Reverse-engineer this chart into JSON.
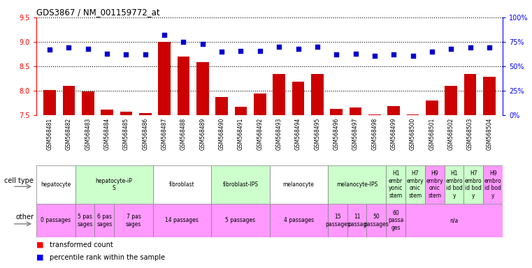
{
  "title": "GDS3867 / NM_001159772_at",
  "samples": [
    "GSM568481",
    "GSM568482",
    "GSM568483",
    "GSM568484",
    "GSM568485",
    "GSM568486",
    "GSM568487",
    "GSM568488",
    "GSM568489",
    "GSM568490",
    "GSM568491",
    "GSM568492",
    "GSM568493",
    "GSM568494",
    "GSM568495",
    "GSM568496",
    "GSM568497",
    "GSM568498",
    "GSM568499",
    "GSM568500",
    "GSM568501",
    "GSM568502",
    "GSM568503",
    "GSM568504"
  ],
  "bar_values": [
    8.01,
    8.1,
    7.98,
    7.62,
    7.57,
    7.55,
    9.0,
    8.7,
    8.59,
    7.87,
    7.67,
    7.94,
    8.35,
    8.18,
    8.35,
    7.63,
    7.65,
    7.52,
    7.68,
    7.52,
    7.8,
    8.1,
    8.35,
    8.28
  ],
  "dot_values": [
    67,
    69,
    68,
    63,
    62,
    62,
    82,
    75,
    73,
    65,
    66,
    66,
    70,
    68,
    70,
    62,
    63,
    61,
    62,
    61,
    65,
    68,
    69,
    69
  ],
  "ylim_left": [
    7.5,
    9.5
  ],
  "ylim_right": [
    0,
    100
  ],
  "bar_color": "#cc0000",
  "dot_color": "#0000cc",
  "cell_types": [
    {
      "label": "hepatocyte",
      "start": 0,
      "end": 2,
      "color": "#ffffff"
    },
    {
      "label": "hepatocyte-iP\nS",
      "start": 2,
      "end": 6,
      "color": "#ccffcc"
    },
    {
      "label": "fibroblast",
      "start": 6,
      "end": 9,
      "color": "#ffffff"
    },
    {
      "label": "fibroblast-IPS",
      "start": 9,
      "end": 12,
      "color": "#ccffcc"
    },
    {
      "label": "melanocyte",
      "start": 12,
      "end": 15,
      "color": "#ffffff"
    },
    {
      "label": "melanocyte-IPS",
      "start": 15,
      "end": 18,
      "color": "#ccffcc"
    },
    {
      "label": "H1\nembr\nyonic\nstem",
      "start": 18,
      "end": 19,
      "color": "#ccffcc"
    },
    {
      "label": "H7\nembry\nonic\nstem",
      "start": 19,
      "end": 20,
      "color": "#ccffcc"
    },
    {
      "label": "H9\nembry\nonic\nstem",
      "start": 20,
      "end": 21,
      "color": "#ff99ff"
    },
    {
      "label": "H1\nembro\nid bod\ny",
      "start": 21,
      "end": 22,
      "color": "#ccffcc"
    },
    {
      "label": "H7\nembro\nid bod\ny",
      "start": 22,
      "end": 23,
      "color": "#ccffcc"
    },
    {
      "label": "H9\nembro\nid bod\ny",
      "start": 23,
      "end": 24,
      "color": "#ff99ff"
    }
  ],
  "other_types": [
    {
      "label": "0 passages",
      "start": 0,
      "end": 2,
      "color": "#ff99ff"
    },
    {
      "label": "5 pas\nsages",
      "start": 2,
      "end": 3,
      "color": "#ff99ff"
    },
    {
      "label": "6 pas\nsages",
      "start": 3,
      "end": 4,
      "color": "#ff99ff"
    },
    {
      "label": "7 pas\nsages",
      "start": 4,
      "end": 6,
      "color": "#ff99ff"
    },
    {
      "label": "14 passages",
      "start": 6,
      "end": 9,
      "color": "#ff99ff"
    },
    {
      "label": "5 passages",
      "start": 9,
      "end": 12,
      "color": "#ff99ff"
    },
    {
      "label": "4 passages",
      "start": 12,
      "end": 15,
      "color": "#ff99ff"
    },
    {
      "label": "15\npassages",
      "start": 15,
      "end": 16,
      "color": "#ff99ff"
    },
    {
      "label": "11\npassag",
      "start": 16,
      "end": 17,
      "color": "#ff99ff"
    },
    {
      "label": "50\npassages",
      "start": 17,
      "end": 18,
      "color": "#ff99ff"
    },
    {
      "label": "60\npassa\nges",
      "start": 18,
      "end": 19,
      "color": "#ff99ff"
    },
    {
      "label": "n/a",
      "start": 19,
      "end": 24,
      "color": "#ff99ff"
    }
  ],
  "dotted_yticks": [
    7.5,
    8.0,
    8.5,
    9.0,
    9.5
  ],
  "right_yticks": [
    0,
    25,
    50,
    75,
    100
  ],
  "right_yticklabels": [
    "0%",
    "25%",
    "50%",
    "75%",
    "100%"
  ],
  "xtick_bg": "#d8d8d8"
}
